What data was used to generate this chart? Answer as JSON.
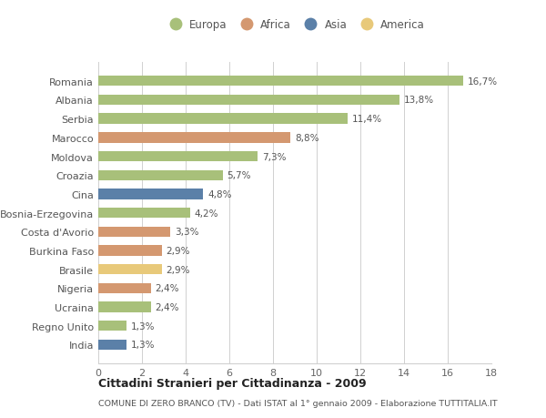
{
  "categories": [
    "India",
    "Regno Unito",
    "Ucraina",
    "Nigeria",
    "Brasile",
    "Burkina Faso",
    "Costa d'Avorio",
    "Bosnia-Erzegovina",
    "Cina",
    "Croazia",
    "Moldova",
    "Marocco",
    "Serbia",
    "Albania",
    "Romania"
  ],
  "values": [
    1.3,
    1.3,
    2.4,
    2.4,
    2.9,
    2.9,
    3.3,
    4.2,
    4.8,
    5.7,
    7.3,
    8.8,
    11.4,
    13.8,
    16.7
  ],
  "colors": [
    "#5b80a8",
    "#a8c07a",
    "#a8c07a",
    "#d49870",
    "#e8c97a",
    "#d49870",
    "#d49870",
    "#a8c07a",
    "#5b80a8",
    "#a8c07a",
    "#a8c07a",
    "#d49870",
    "#a8c07a",
    "#a8c07a",
    "#a8c07a"
  ],
  "labels": [
    "1,3%",
    "1,3%",
    "2,4%",
    "2,4%",
    "2,9%",
    "2,9%",
    "3,3%",
    "4,2%",
    "4,8%",
    "5,7%",
    "7,3%",
    "8,8%",
    "11,4%",
    "13,8%",
    "16,7%"
  ],
  "legend_names": [
    "Europa",
    "Africa",
    "Asia",
    "America"
  ],
  "legend_colors": [
    "#a8c07a",
    "#d49870",
    "#5b80a8",
    "#e8c97a"
  ],
  "title": "Cittadini Stranieri per Cittadinanza - 2009",
  "subtitle": "COMUNE DI ZERO BRANCO (TV) - Dati ISTAT al 1° gennaio 2009 - Elaborazione TUTTITALIA.IT",
  "xlim": [
    0,
    18
  ],
  "xticks": [
    0,
    2,
    4,
    6,
    8,
    10,
    12,
    14,
    16,
    18
  ],
  "background_color": "#ffffff",
  "grid_color": "#d0d0d0",
  "bar_height": 0.55
}
